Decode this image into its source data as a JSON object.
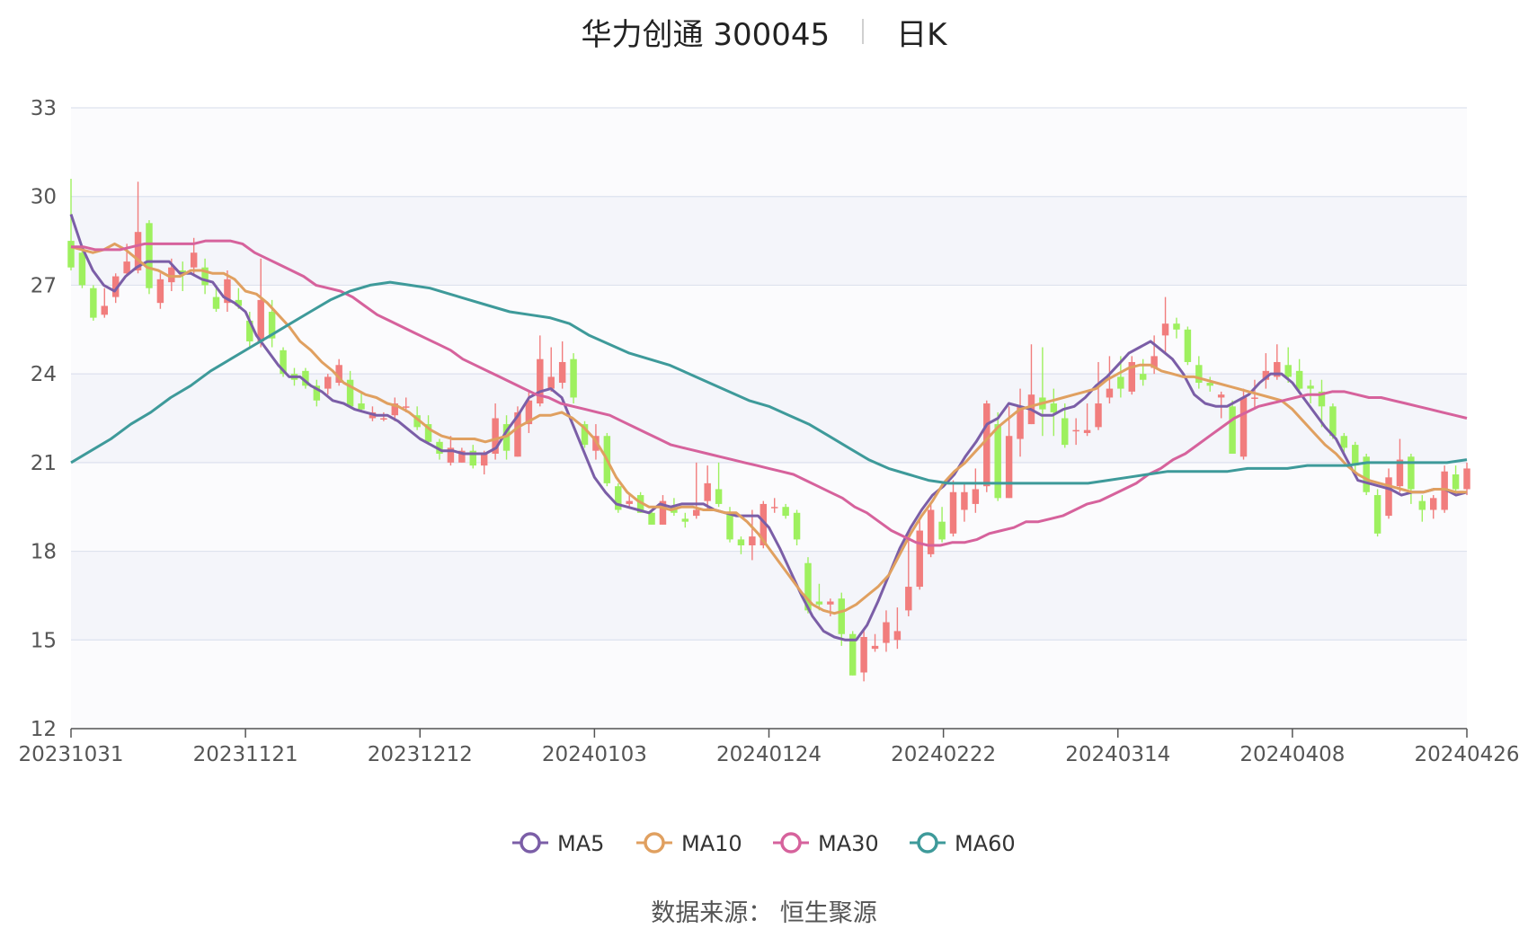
{
  "header": {
    "title": "华力创通 300045",
    "period": "日K"
  },
  "footer": {
    "source": "数据来源： 恒生聚源"
  },
  "chart_data": {
    "type": "candlestick",
    "y_ticks": [
      12,
      15,
      18,
      21,
      24,
      27,
      30,
      33
    ],
    "ylim": [
      12,
      33
    ],
    "x_ticks": [
      "20231031",
      "20231121",
      "20231212",
      "20240103",
      "20240124",
      "20240222",
      "20240314",
      "20240408",
      "20240426"
    ],
    "grid": true,
    "legend_position": "bottom",
    "colors": {
      "up": "#f17d7d",
      "down": "#9ef05f"
    },
    "candles": [
      [
        28.5,
        27.6,
        30.6,
        27.5
      ],
      [
        28.1,
        27.0,
        28.3,
        26.9
      ],
      [
        26.9,
        25.9,
        27.0,
        25.8
      ],
      [
        26.0,
        26.3,
        26.9,
        25.9
      ],
      [
        26.6,
        27.3,
        27.4,
        26.4
      ],
      [
        27.4,
        27.8,
        28.4,
        27.3
      ],
      [
        27.5,
        28.8,
        30.5,
        27.4
      ],
      [
        29.1,
        26.9,
        29.2,
        26.7
      ],
      [
        26.4,
        27.2,
        27.4,
        26.2
      ],
      [
        27.1,
        27.6,
        27.9,
        26.8
      ],
      [
        27.5,
        27.4,
        27.8,
        26.8
      ],
      [
        27.6,
        28.1,
        28.6,
        27.3
      ],
      [
        27.6,
        27.0,
        27.9,
        26.7
      ],
      [
        26.6,
        26.2,
        26.9,
        26.1
      ],
      [
        26.4,
        27.2,
        27.5,
        26.1
      ],
      [
        26.5,
        26.3,
        26.9,
        26.2
      ],
      [
        25.8,
        25.1,
        26.1,
        24.9
      ],
      [
        25.1,
        26.5,
        27.9,
        24.9
      ],
      [
        26.1,
        25.2,
        26.5,
        24.9
      ],
      [
        24.8,
        24.0,
        24.9,
        23.9
      ],
      [
        24.0,
        23.8,
        24.2,
        23.6
      ],
      [
        24.1,
        23.6,
        24.2,
        23.5
      ],
      [
        23.6,
        23.1,
        23.8,
        22.9
      ],
      [
        23.5,
        23.9,
        24.0,
        23.3
      ],
      [
        23.7,
        24.3,
        24.5,
        23.6
      ],
      [
        23.8,
        22.9,
        24.1,
        22.9
      ],
      [
        23.0,
        22.8,
        23.4,
        22.7
      ],
      [
        22.5,
        22.7,
        22.9,
        22.4
      ],
      [
        22.5,
        22.5,
        22.7,
        22.4
      ],
      [
        22.6,
        23.0,
        23.2,
        22.4
      ],
      [
        22.9,
        22.9,
        23.2,
        22.7
      ],
      [
        22.6,
        22.2,
        22.9,
        22.1
      ],
      [
        22.3,
        21.7,
        22.6,
        21.6
      ],
      [
        21.7,
        21.3,
        21.8,
        21.1
      ],
      [
        21.0,
        21.5,
        21.9,
        20.9
      ],
      [
        21.0,
        21.4,
        21.5,
        21.0
      ],
      [
        21.4,
        20.9,
        21.6,
        20.8
      ],
      [
        20.9,
        21.3,
        21.4,
        20.6
      ],
      [
        21.3,
        22.5,
        23.0,
        21.1
      ],
      [
        22.3,
        21.4,
        22.6,
        21.1
      ],
      [
        21.2,
        22.7,
        22.9,
        21.2
      ],
      [
        22.3,
        23.1,
        23.4,
        22.0
      ],
      [
        23.0,
        24.5,
        25.3,
        22.9
      ],
      [
        23.5,
        23.9,
        24.9,
        23.4
      ],
      [
        23.7,
        24.4,
        25.1,
        23.5
      ],
      [
        24.5,
        23.2,
        24.7,
        23.0
      ],
      [
        22.3,
        21.6,
        22.4,
        21.5
      ],
      [
        21.4,
        21.9,
        22.3,
        21.1
      ],
      [
        21.9,
        20.3,
        22.0,
        20.2
      ],
      [
        20.2,
        19.4,
        20.3,
        19.3
      ],
      [
        19.6,
        19.7,
        19.9,
        19.5
      ],
      [
        19.9,
        19.3,
        20.0,
        19.3
      ],
      [
        19.3,
        18.9,
        19.4,
        18.9
      ],
      [
        18.9,
        19.7,
        19.9,
        18.9
      ],
      [
        19.5,
        19.3,
        19.8,
        19.2
      ],
      [
        19.1,
        19.0,
        19.3,
        18.8
      ],
      [
        19.2,
        19.4,
        21.0,
        19.1
      ],
      [
        19.7,
        20.3,
        20.9,
        19.4
      ],
      [
        20.1,
        19.6,
        21.0,
        19.5
      ],
      [
        19.3,
        18.4,
        19.5,
        18.3
      ],
      [
        18.4,
        18.2,
        18.5,
        17.9
      ],
      [
        18.2,
        18.5,
        19.4,
        17.7
      ],
      [
        18.2,
        19.6,
        19.7,
        18.1
      ],
      [
        19.5,
        19.5,
        19.8,
        19.3
      ],
      [
        19.5,
        19.2,
        19.6,
        19.1
      ],
      [
        19.3,
        18.4,
        19.4,
        18.2
      ],
      [
        17.6,
        16.0,
        17.8,
        15.9
      ],
      [
        16.3,
        16.2,
        16.9,
        16.0
      ],
      [
        16.2,
        16.3,
        16.4,
        15.8
      ],
      [
        16.4,
        15.2,
        16.6,
        14.8
      ],
      [
        15.2,
        13.8,
        15.3,
        13.8
      ],
      [
        13.9,
        15.1,
        15.3,
        13.6
      ],
      [
        14.7,
        14.8,
        15.2,
        14.6
      ],
      [
        14.9,
        15.6,
        16.0,
        14.6
      ],
      [
        15.0,
        15.3,
        16.1,
        14.7
      ],
      [
        16.0,
        16.8,
        18.7,
        15.8
      ],
      [
        16.8,
        18.7,
        19.1,
        16.7
      ],
      [
        17.9,
        19.4,
        19.6,
        17.8
      ],
      [
        19.0,
        18.4,
        19.5,
        18.3
      ],
      [
        18.6,
        20.0,
        20.4,
        18.5
      ],
      [
        19.4,
        20.0,
        20.3,
        19.0
      ],
      [
        19.6,
        20.1,
        20.8,
        19.3
      ],
      [
        20.2,
        23.0,
        23.1,
        20.0
      ],
      [
        22.3,
        19.8,
        22.7,
        19.7
      ],
      [
        19.8,
        21.9,
        22.9,
        19.8
      ],
      [
        21.8,
        22.9,
        23.5,
        21.2
      ],
      [
        22.3,
        23.3,
        25.0,
        22.3
      ],
      [
        23.2,
        22.8,
        24.9,
        21.9
      ],
      [
        23.0,
        22.7,
        23.5,
        21.9
      ],
      [
        22.5,
        21.6,
        23.0,
        21.5
      ],
      [
        22.1,
        22.1,
        22.5,
        21.6
      ],
      [
        22.0,
        22.1,
        23.0,
        21.9
      ],
      [
        22.2,
        23.0,
        24.4,
        22.1
      ],
      [
        23.2,
        23.5,
        24.6,
        23.0
      ],
      [
        23.9,
        23.5,
        24.6,
        23.2
      ],
      [
        23.4,
        24.4,
        24.6,
        23.3
      ],
      [
        24.0,
        23.8,
        24.5,
        23.6
      ],
      [
        24.2,
        24.6,
        25.3,
        24.0
      ],
      [
        25.3,
        25.7,
        26.6,
        24.7
      ],
      [
        25.7,
        25.5,
        25.9,
        25.2
      ],
      [
        25.5,
        24.4,
        25.6,
        24.3
      ],
      [
        24.3,
        23.7,
        24.6,
        23.5
      ],
      [
        23.7,
        23.6,
        23.9,
        23.4
      ],
      [
        23.2,
        23.3,
        23.4,
        22.5
      ],
      [
        22.9,
        21.3,
        23.1,
        21.3
      ],
      [
        21.2,
        23.2,
        23.5,
        21.1
      ],
      [
        23.2,
        23.2,
        23.8,
        22.8
      ],
      [
        23.8,
        24.1,
        24.7,
        23.5
      ],
      [
        23.9,
        24.4,
        25.0,
        23.8
      ],
      [
        24.3,
        23.9,
        24.9,
        23.7
      ],
      [
        24.1,
        23.5,
        24.5,
        23.4
      ],
      [
        23.6,
        23.5,
        23.8,
        23.0
      ],
      [
        23.4,
        22.9,
        23.8,
        22.2
      ],
      [
        22.9,
        21.9,
        23.0,
        21.8
      ],
      [
        21.9,
        21.5,
        22.0,
        21.3
      ],
      [
        21.6,
        20.9,
        21.7,
        20.7
      ],
      [
        21.2,
        20.0,
        21.3,
        19.9
      ],
      [
        19.9,
        18.6,
        20.1,
        18.5
      ],
      [
        19.2,
        20.5,
        20.8,
        19.1
      ],
      [
        20.2,
        21.1,
        21.8,
        20.0
      ],
      [
        21.2,
        20.1,
        21.3,
        19.6
      ],
      [
        19.7,
        19.4,
        19.9,
        19.0
      ],
      [
        19.4,
        19.8,
        19.9,
        19.1
      ],
      [
        19.4,
        20.7,
        20.9,
        19.3
      ],
      [
        20.6,
        20.1,
        20.9,
        19.9
      ],
      [
        20.1,
        20.8,
        21.0,
        19.9
      ]
    ],
    "series": [
      {
        "name": "MA5",
        "color": "#7b5ea7",
        "values": [
          29.4,
          28.3,
          27.5,
          27.0,
          26.8,
          27.3,
          27.6,
          27.8,
          27.8,
          27.8,
          27.4,
          27.4,
          27.2,
          27.1,
          26.6,
          26.4,
          26.1,
          25.3,
          24.8,
          24.3,
          23.9,
          23.9,
          23.6,
          23.4,
          23.1,
          23.0,
          22.8,
          22.7,
          22.6,
          22.6,
          22.4,
          22.1,
          21.8,
          21.6,
          21.4,
          21.4,
          21.3,
          21.3,
          21.3,
          21.5,
          22.1,
          22.6,
          23.2,
          23.4,
          23.5,
          23.2,
          22.3,
          21.4,
          20.5,
          20.0,
          19.6,
          19.5,
          19.4,
          19.3,
          19.6,
          19.5,
          19.6,
          19.6,
          19.6,
          19.4,
          19.3,
          19.2,
          19.2,
          19.2,
          18.8,
          18.1,
          17.3,
          16.5,
          15.8,
          15.3,
          15.1,
          15.0,
          15.0,
          15.5,
          16.3,
          17.2,
          18.1,
          18.8,
          19.4,
          19.9,
          20.2,
          20.6,
          21.2,
          21.7,
          22.3,
          22.5,
          23.0,
          22.9,
          22.8,
          22.6,
          22.6,
          22.8,
          22.9,
          23.2,
          23.6,
          23.9,
          24.3,
          24.7,
          24.9,
          25.1,
          24.8,
          24.5,
          24.0,
          23.3,
          23.0,
          22.9,
          22.9,
          23.1,
          23.3,
          23.7,
          24.0,
          24.0,
          23.7,
          23.2,
          22.7,
          22.2,
          21.8,
          21.1,
          20.4,
          20.3,
          20.2,
          20.1,
          19.9,
          20.0,
          20.0,
          20.1,
          20.1,
          19.9,
          20.0
        ]
      },
      {
        "name": "MA10",
        "color": "#e0a060",
        "values": [
          28.3,
          28.2,
          28.1,
          28.2,
          28.4,
          28.2,
          27.9,
          27.6,
          27.5,
          27.3,
          27.3,
          27.5,
          27.5,
          27.4,
          27.4,
          27.2,
          26.8,
          26.7,
          26.4,
          26.0,
          25.6,
          25.1,
          24.8,
          24.4,
          24.1,
          23.7,
          23.5,
          23.3,
          23.2,
          23.0,
          22.9,
          22.7,
          22.4,
          22.1,
          21.9,
          21.8,
          21.8,
          21.8,
          21.7,
          21.8,
          21.9,
          22.2,
          22.4,
          22.6,
          22.6,
          22.7,
          22.5,
          22.2,
          21.8,
          21.2,
          20.5,
          20.0,
          19.7,
          19.5,
          19.5,
          19.4,
          19.5,
          19.5,
          19.4,
          19.4,
          19.3,
          19.3,
          19.0,
          18.6,
          18.1,
          17.6,
          17.1,
          16.6,
          16.2,
          16.0,
          15.9,
          16.0,
          16.2,
          16.5,
          16.8,
          17.2,
          17.9,
          18.6,
          19.2,
          19.7,
          20.3,
          20.7,
          21.0,
          21.4,
          21.8,
          22.2,
          22.5,
          22.8,
          22.9,
          23.0,
          23.1,
          23.2,
          23.3,
          23.4,
          23.5,
          23.8,
          24.0,
          24.2,
          24.3,
          24.3,
          24.1,
          24.0,
          23.9,
          23.9,
          23.8,
          23.7,
          23.6,
          23.5,
          23.4,
          23.3,
          23.2,
          23.1,
          22.8,
          22.4,
          22.0,
          21.6,
          21.3,
          20.9,
          20.6,
          20.4,
          20.3,
          20.2,
          20.1,
          20.0,
          20.0,
          20.1,
          20.1,
          20.0,
          20.0
        ]
      },
      {
        "name": "MA30",
        "color": "#d6629c",
        "values": [
          28.3,
          28.3,
          28.2,
          28.2,
          28.2,
          28.3,
          28.4,
          28.4,
          28.4,
          28.4,
          28.4,
          28.5,
          28.5,
          28.5,
          28.4,
          28.1,
          27.9,
          27.7,
          27.5,
          27.3,
          27.0,
          26.9,
          26.8,
          26.6,
          26.3,
          26.0,
          25.8,
          25.6,
          25.4,
          25.2,
          25.0,
          24.8,
          24.5,
          24.3,
          24.1,
          23.9,
          23.7,
          23.5,
          23.3,
          23.2,
          23.0,
          22.9,
          22.8,
          22.7,
          22.6,
          22.4,
          22.2,
          22.0,
          21.8,
          21.6,
          21.5,
          21.4,
          21.3,
          21.2,
          21.1,
          21.0,
          20.9,
          20.8,
          20.7,
          20.6,
          20.4,
          20.2,
          20.0,
          19.8,
          19.5,
          19.3,
          19.0,
          18.7,
          18.5,
          18.3,
          18.2,
          18.2,
          18.3,
          18.3,
          18.4,
          18.6,
          18.7,
          18.8,
          19.0,
          19.0,
          19.1,
          19.2,
          19.4,
          19.6,
          19.7,
          19.9,
          20.1,
          20.3,
          20.6,
          20.8,
          21.1,
          21.3,
          21.6,
          21.9,
          22.2,
          22.5,
          22.7,
          22.9,
          23.0,
          23.1,
          23.2,
          23.3,
          23.3,
          23.4,
          23.4,
          23.3,
          23.2,
          23.2,
          23.1,
          23.0,
          22.9,
          22.8,
          22.7,
          22.6,
          22.5
        ]
      },
      {
        "name": "MA60",
        "color": "#3e9a9a",
        "values": [
          21.0,
          21.4,
          21.8,
          22.3,
          22.7,
          23.2,
          23.6,
          24.1,
          24.5,
          24.9,
          25.3,
          25.7,
          26.1,
          26.5,
          26.8,
          27.0,
          27.1,
          27.0,
          26.9,
          26.7,
          26.5,
          26.3,
          26.1,
          26.0,
          25.9,
          25.7,
          25.3,
          25.0,
          24.7,
          24.5,
          24.3,
          24.0,
          23.7,
          23.4,
          23.1,
          22.9,
          22.6,
          22.3,
          21.9,
          21.5,
          21.1,
          20.8,
          20.6,
          20.4,
          20.3,
          20.3,
          20.3,
          20.3,
          20.3,
          20.3,
          20.3,
          20.3,
          20.4,
          20.5,
          20.6,
          20.7,
          20.7,
          20.7,
          20.7,
          20.8,
          20.8,
          20.8,
          20.9,
          20.9,
          20.9,
          21.0,
          21.0,
          21.0,
          21.0,
          21.0,
          21.1
        ]
      }
    ]
  }
}
